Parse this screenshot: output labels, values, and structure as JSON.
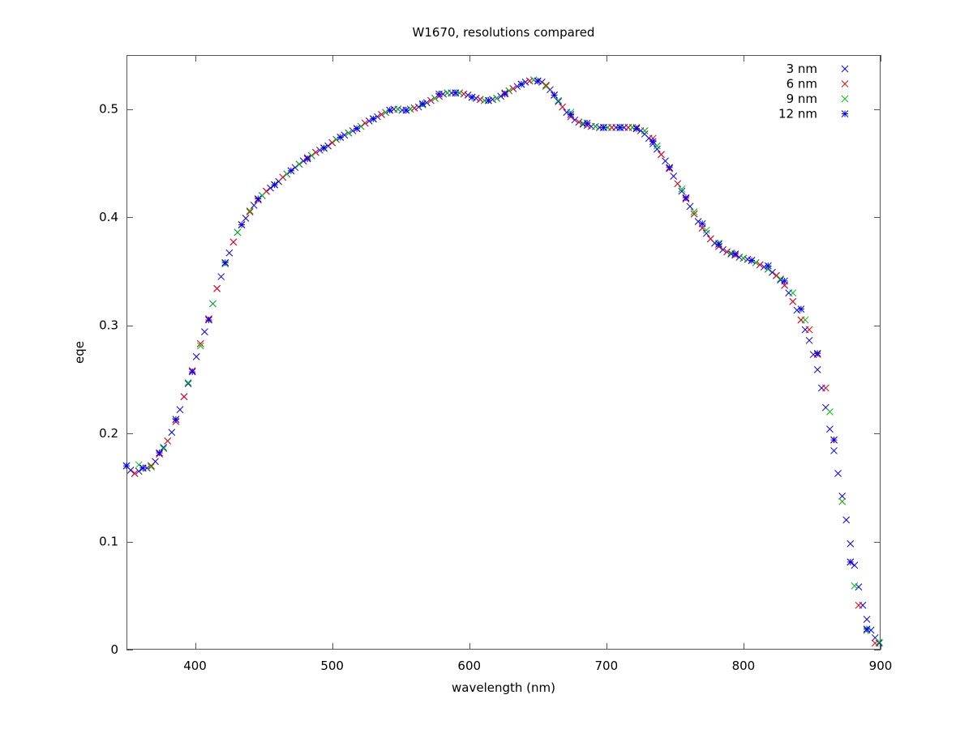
{
  "chart_data": {
    "type": "scatter",
    "title": "W1670, resolutions compared",
    "xlabel": "wavelength (nm)",
    "ylabel": "eqe",
    "xlim": [
      350,
      900
    ],
    "ylim": [
      0,
      0.55
    ],
    "xticks": [
      400,
      500,
      600,
      700,
      800,
      900
    ],
    "xtick_labels": [
      "400",
      "500",
      "600",
      "700",
      "800",
      "900"
    ],
    "yticks": [
      0,
      0.1,
      0.2,
      0.3,
      0.4,
      0.5
    ],
    "ytick_labels": [
      "0",
      "0.1",
      "0.2",
      "0.3",
      "0.4",
      "0.5"
    ],
    "grid": false,
    "legend": "top-right",
    "series": [
      {
        "name": "3 nm",
        "color": "#0000ff",
        "marker": "x",
        "x": [
          350,
          353,
          356,
          359,
          362,
          365,
          368,
          371,
          374,
          377,
          380,
          383,
          386,
          389,
          392,
          395,
          398,
          401,
          404,
          407,
          410,
          413,
          416,
          419,
          422,
          425,
          428,
          431,
          434,
          437,
          440,
          443,
          446,
          449,
          452,
          455,
          458,
          461,
          464,
          467,
          470,
          473,
          476,
          479,
          482,
          485,
          488,
          491,
          494,
          497,
          500,
          503,
          506,
          509,
          512,
          515,
          518,
          521,
          524,
          527,
          530,
          533,
          536,
          539,
          542,
          545,
          548,
          551,
          554,
          557,
          560,
          563,
          566,
          569,
          572,
          575,
          578,
          581,
          584,
          587,
          590,
          593,
          596,
          599,
          602,
          605,
          608,
          611,
          614,
          617,
          620,
          623,
          626,
          629,
          632,
          635,
          638,
          641,
          644,
          647,
          650,
          653,
          656,
          659,
          662,
          665,
          668,
          671,
          674,
          677,
          680,
          683,
          686,
          689,
          692,
          695,
          698,
          701,
          704,
          707,
          710,
          713,
          716,
          719,
          722,
          725,
          728,
          731,
          734,
          737,
          740,
          743,
          746,
          749,
          752,
          755,
          758,
          761,
          764,
          767,
          770,
          773,
          776,
          779,
          782,
          785,
          788,
          791,
          794,
          797,
          800,
          803,
          806,
          809,
          812,
          815,
          818,
          821,
          824,
          827,
          830,
          833,
          836,
          839,
          842,
          845,
          848,
          851,
          854,
          857,
          860,
          863,
          866,
          869,
          872,
          875,
          878,
          881,
          884,
          887,
          890,
          893,
          896,
          899
        ],
        "values": [
          0.17,
          0.166,
          0.163,
          0.165,
          0.168,
          0.168,
          0.17,
          0.174,
          0.181,
          0.187,
          0.193,
          0.201,
          0.211,
          0.222,
          0.234,
          0.246,
          0.258,
          0.271,
          0.283,
          0.294,
          0.306,
          0.32,
          0.334,
          0.345,
          0.357,
          0.367,
          0.377,
          0.386,
          0.393,
          0.399,
          0.405,
          0.411,
          0.416,
          0.42,
          0.424,
          0.427,
          0.43,
          0.433,
          0.437,
          0.44,
          0.443,
          0.446,
          0.449,
          0.452,
          0.455,
          0.457,
          0.46,
          0.462,
          0.464,
          0.466,
          0.469,
          0.472,
          0.474,
          0.476,
          0.478,
          0.48,
          0.482,
          0.484,
          0.487,
          0.489,
          0.491,
          0.493,
          0.495,
          0.497,
          0.499,
          0.5,
          0.5,
          0.499,
          0.499,
          0.5,
          0.501,
          0.502,
          0.504,
          0.506,
          0.508,
          0.51,
          0.512,
          0.514,
          0.515,
          0.515,
          0.515,
          0.515,
          0.514,
          0.513,
          0.511,
          0.51,
          0.509,
          0.508,
          0.508,
          0.509,
          0.51,
          0.512,
          0.515,
          0.517,
          0.519,
          0.521,
          0.523,
          0.525,
          0.526,
          0.527,
          0.526,
          0.525,
          0.522,
          0.518,
          0.513,
          0.507,
          0.502,
          0.497,
          0.493,
          0.49,
          0.488,
          0.486,
          0.485,
          0.484,
          0.484,
          0.483,
          0.483,
          0.483,
          0.483,
          0.483,
          0.483,
          0.483,
          0.483,
          0.483,
          0.482,
          0.48,
          0.477,
          0.473,
          0.468,
          0.463,
          0.458,
          0.452,
          0.445,
          0.438,
          0.431,
          0.424,
          0.417,
          0.41,
          0.403,
          0.396,
          0.39,
          0.385,
          0.38,
          0.376,
          0.373,
          0.37,
          0.368,
          0.366,
          0.365,
          0.363,
          0.362,
          0.361,
          0.36,
          0.358,
          0.356,
          0.354,
          0.352,
          0.349,
          0.346,
          0.342,
          0.337,
          0.33,
          0.322,
          0.314,
          0.305,
          0.296,
          0.286,
          0.273,
          0.259,
          0.242,
          0.224,
          0.204,
          0.184,
          0.163,
          0.142,
          0.12,
          0.098,
          0.078,
          0.058,
          0.041,
          0.028,
          0.018,
          0.011,
          0.006
        ]
      },
      {
        "name": "6 nm",
        "color": "#ff0000",
        "marker": "x",
        "x": [
          350,
          356,
          362,
          368,
          374,
          380,
          386,
          392,
          398,
          404,
          410,
          416,
          422,
          428,
          434,
          440,
          446,
          452,
          458,
          464,
          470,
          476,
          482,
          488,
          494,
          500,
          506,
          512,
          518,
          524,
          530,
          536,
          542,
          548,
          554,
          560,
          566,
          572,
          578,
          584,
          590,
          596,
          602,
          608,
          614,
          620,
          626,
          632,
          638,
          644,
          650,
          656,
          662,
          668,
          674,
          680,
          686,
          692,
          698,
          704,
          710,
          716,
          722,
          728,
          734,
          740,
          746,
          752,
          758,
          764,
          770,
          776,
          782,
          788,
          794,
          800,
          806,
          812,
          818,
          824,
          830,
          836,
          842,
          848,
          854,
          860,
          866,
          872,
          878,
          884,
          890,
          896
        ],
        "values": [
          0.17,
          0.163,
          0.168,
          0.17,
          0.181,
          0.193,
          0.211,
          0.234,
          0.258,
          0.283,
          0.306,
          0.334,
          0.357,
          0.377,
          0.393,
          0.405,
          0.416,
          0.424,
          0.43,
          0.437,
          0.443,
          0.449,
          0.455,
          0.46,
          0.464,
          0.469,
          0.474,
          0.478,
          0.482,
          0.487,
          0.491,
          0.495,
          0.499,
          0.5,
          0.499,
          0.501,
          0.504,
          0.508,
          0.512,
          0.515,
          0.515,
          0.514,
          0.511,
          0.509,
          0.508,
          0.51,
          0.515,
          0.519,
          0.523,
          0.526,
          0.526,
          0.522,
          0.513,
          0.502,
          0.493,
          0.488,
          0.485,
          0.484,
          0.483,
          0.483,
          0.483,
          0.483,
          0.483,
          0.48,
          0.473,
          0.458,
          0.445,
          0.431,
          0.417,
          0.403,
          0.39,
          0.38,
          0.373,
          0.368,
          0.365,
          0.362,
          0.36,
          0.356,
          0.352,
          0.346,
          0.337,
          0.322,
          0.305,
          0.296,
          0.273,
          0.242,
          0.194,
          0.137,
          0.081,
          0.041,
          0.018,
          0.006
        ]
      },
      {
        "name": "9 nm",
        "color": "#00c000",
        "marker": "x",
        "x": [
          350,
          359,
          368,
          377,
          386,
          395,
          404,
          413,
          422,
          431,
          440,
          449,
          458,
          467,
          476,
          485,
          494,
          503,
          512,
          521,
          530,
          539,
          548,
          557,
          566,
          575,
          584,
          593,
          602,
          611,
          620,
          629,
          638,
          647,
          656,
          665,
          674,
          683,
          692,
          701,
          710,
          719,
          728,
          737,
          746,
          755,
          764,
          773,
          782,
          791,
          800,
          809,
          818,
          827,
          836,
          845,
          854,
          863,
          872,
          881,
          890,
          899
        ],
        "values": [
          0.17,
          0.171,
          0.169,
          0.186,
          0.213,
          0.247,
          0.281,
          0.32,
          0.357,
          0.386,
          0.406,
          0.42,
          0.43,
          0.44,
          0.449,
          0.457,
          0.464,
          0.472,
          0.478,
          0.484,
          0.491,
          0.497,
          0.5,
          0.5,
          0.504,
          0.51,
          0.515,
          0.515,
          0.511,
          0.508,
          0.51,
          0.517,
          0.523,
          0.527,
          0.521,
          0.508,
          0.497,
          0.487,
          0.484,
          0.483,
          0.483,
          0.483,
          0.48,
          0.466,
          0.446,
          0.426,
          0.405,
          0.388,
          0.376,
          0.367,
          0.362,
          0.358,
          0.352,
          0.343,
          0.33,
          0.305,
          0.274,
          0.22,
          0.137,
          0.059,
          0.018,
          0.007
        ]
      },
      {
        "name": "12 nm",
        "color": "#0000ff",
        "marker": "star",
        "x": [
          350,
          362,
          374,
          386,
          398,
          410,
          422,
          434,
          446,
          458,
          470,
          482,
          494,
          506,
          518,
          530,
          542,
          554,
          566,
          578,
          590,
          602,
          614,
          626,
          638,
          650,
          662,
          674,
          686,
          698,
          710,
          722,
          734,
          746,
          758,
          770,
          782,
          794,
          806,
          818,
          830,
          842,
          854,
          866,
          878,
          890
        ],
        "values": [
          0.17,
          0.168,
          0.182,
          0.213,
          0.257,
          0.305,
          0.358,
          0.393,
          0.417,
          0.43,
          0.443,
          0.454,
          0.464,
          0.474,
          0.482,
          0.491,
          0.499,
          0.499,
          0.505,
          0.514,
          0.515,
          0.511,
          0.508,
          0.514,
          0.523,
          0.526,
          0.513,
          0.495,
          0.487,
          0.483,
          0.483,
          0.482,
          0.47,
          0.446,
          0.418,
          0.394,
          0.375,
          0.366,
          0.36,
          0.355,
          0.341,
          0.315,
          0.274,
          0.194,
          0.081,
          0.019
        ]
      }
    ]
  }
}
